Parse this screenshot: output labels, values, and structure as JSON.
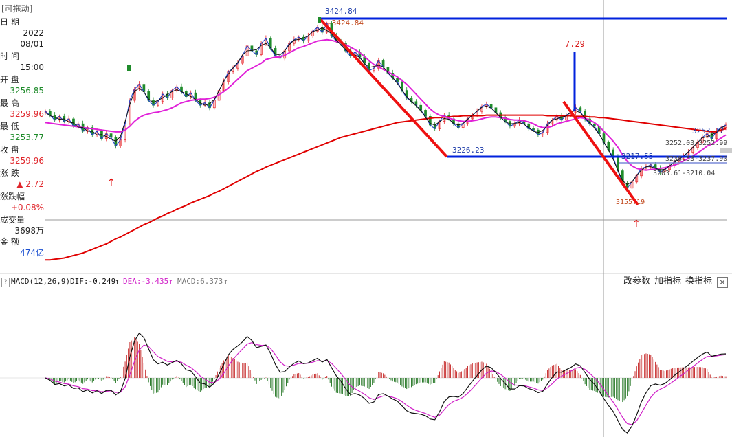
{
  "info_panel": {
    "drag_label": "[可拖动]",
    "date_label": "日  期",
    "date_year": "2022",
    "date_md": "08/01",
    "time_label": "时  间",
    "time_value": "15:00",
    "open_label": "开  盘",
    "open_value": "3256.85",
    "high_label": "最  高",
    "high_value": "3259.96",
    "low_label": "最  低",
    "low_value": "3253.77",
    "close_label": "收  盘",
    "close_value": "3259.96",
    "change_label": "涨  跌",
    "change_value": "▲ 2.72",
    "pct_label": "涨跌幅",
    "pct_value": "+0.08%",
    "vol_label": "成交量",
    "vol_value": "3698万",
    "amt_label": "金  额",
    "amt_value": "474亿"
  },
  "macd_bar": {
    "help": "?",
    "title": "MACD(12,26,9)",
    "dif": "DIF:-0.249",
    "dif_arrow": "↑",
    "dea": "DEA:-3.435",
    "dea_arrow": "↑",
    "macd": "MACD:6.373",
    "macd_arrow": "↑",
    "btn_params": "改参数",
    "btn_add": "加指标",
    "btn_switch": "换指标",
    "btn_close": "×"
  },
  "annotations": {
    "high_top": "3424.84",
    "high_side": "3424.84",
    "mid_low": "3226.23",
    "line_value": "7.29",
    "level_3217": "3217.55",
    "low_3155": "3155.19",
    "last_3253": "3253.17",
    "range_a": "3252.03-3252.99",
    "range_b": "3238.53-3237.90",
    "range_c": "3203.61-3210.04"
  },
  "colors": {
    "up": "#e8262b",
    "down": "#1f8b2b",
    "ma_short": "#000000",
    "ma_mid": "#e020d8",
    "ma_long": "#e00000",
    "blue_line": "#0022dd",
    "red_trend": "#ee1111",
    "dif": "#000000",
    "dea": "#d020c8",
    "macd_up": "#c83030",
    "macd_down": "#2a7a2a",
    "label_blue": "#1b3aa8"
  },
  "chart_data": {
    "type": "line",
    "title": "",
    "yrange_price": [
      3040,
      3440
    ],
    "series": [
      {
        "values": [
          3282,
          3276,
          3268,
          3274,
          3266,
          3270,
          3258,
          3262,
          3250,
          3256,
          3244,
          3250,
          3238,
          3246,
          3240,
          3226,
          3236,
          3262,
          3300,
          3318,
          3326,
          3314,
          3300,
          3292,
          3298,
          3310,
          3304,
          3316,
          3322,
          3314,
          3306,
          3312,
          3300,
          3292,
          3296,
          3288,
          3300,
          3316,
          3330,
          3346,
          3352,
          3360,
          3372,
          3388,
          3380,
          3374,
          3392,
          3400,
          3384,
          3372,
          3368,
          3380,
          3392,
          3398,
          3402,
          3396,
          3404,
          3412,
          3418,
          3410,
          3424,
          3404,
          3396,
          3392,
          3380,
          3372,
          3378,
          3370,
          3360,
          3348,
          3352,
          3364,
          3354,
          3344,
          3336,
          3330,
          3316,
          3304,
          3298,
          3292,
          3284,
          3274,
          3260,
          3254,
          3266,
          3276,
          3270,
          3262,
          3256,
          3262,
          3270,
          3276,
          3282,
          3290,
          3294,
          3288,
          3280,
          3272,
          3266,
          3258,
          3262,
          3268,
          3262,
          3254,
          3252,
          3244,
          3248,
          3262,
          3268,
          3274,
          3268,
          3276,
          3280,
          3288,
          3282,
          3270,
          3262,
          3258,
          3246,
          3232,
          3220,
          3208,
          3186,
          3166,
          3158,
          3168,
          3178,
          3190,
          3192,
          3196,
          3190,
          3184,
          3188,
          3194,
          3200,
          3204,
          3210,
          3216,
          3224,
          3232,
          3240,
          3246,
          3238,
          3250,
          3256,
          3260
        ]
      },
      {
        "values": [
          3264,
          3263,
          3262,
          3261,
          3260,
          3259,
          3258,
          3257,
          3256,
          3255,
          3254,
          3253,
          3252,
          3251,
          3250,
          3249,
          3249,
          3252,
          3258,
          3266,
          3272,
          3276,
          3278,
          3280,
          3281,
          3283,
          3285,
          3288,
          3292,
          3296,
          3298,
          3300,
          3301,
          3302,
          3302,
          3303,
          3305,
          3309,
          3314,
          3320,
          3327,
          3334,
          3341,
          3348,
          3352,
          3356,
          3360,
          3366,
          3368,
          3370,
          3370,
          3373,
          3377,
          3381,
          3385,
          3387,
          3390,
          3393,
          3396,
          3397,
          3398,
          3397,
          3395,
          3393,
          3390,
          3386,
          3382,
          3377,
          3371,
          3364,
          3358,
          3354,
          3350,
          3346,
          3342,
          3338,
          3332,
          3326,
          3318,
          3310,
          3302,
          3294,
          3286,
          3280,
          3276,
          3274,
          3271,
          3269,
          3267,
          3266,
          3266,
          3267,
          3268,
          3270,
          3272,
          3273,
          3273,
          3272,
          3271,
          3269,
          3268,
          3268,
          3267,
          3265,
          3262,
          3258,
          3256,
          3256,
          3258,
          3262,
          3264,
          3266,
          3268,
          3270,
          3272,
          3271,
          3268,
          3264,
          3258,
          3250,
          3242,
          3234,
          3224,
          3212,
          3201,
          3194,
          3190,
          3188,
          3187,
          3188,
          3189,
          3190,
          3191,
          3193,
          3195,
          3198,
          3202,
          3206,
          3210,
          3215,
          3220,
          3226,
          3229,
          3234,
          3239,
          3244
        ]
      },
      {
        "values": [
          3042,
          3042,
          3043,
          3044,
          3045,
          3047,
          3049,
          3051,
          3053,
          3056,
          3059,
          3062,
          3065,
          3068,
          3072,
          3076,
          3079,
          3083,
          3087,
          3091,
          3095,
          3099,
          3102,
          3106,
          3110,
          3113,
          3117,
          3120,
          3124,
          3127,
          3130,
          3134,
          3137,
          3140,
          3143,
          3146,
          3150,
          3153,
          3157,
          3161,
          3165,
          3169,
          3173,
          3177,
          3181,
          3185,
          3188,
          3192,
          3195,
          3198,
          3201,
          3204,
          3207,
          3210,
          3213,
          3216,
          3219,
          3222,
          3225,
          3228,
          3231,
          3234,
          3237,
          3240,
          3242,
          3244,
          3246,
          3248,
          3250,
          3252,
          3254,
          3256,
          3258,
          3260,
          3262,
          3264,
          3265,
          3266,
          3267,
          3268,
          3269,
          3270,
          3271,
          3272,
          3272,
          3273,
          3273,
          3274,
          3274,
          3275,
          3275,
          3275,
          3275,
          3275,
          3276,
          3276,
          3276,
          3276,
          3276,
          3276,
          3276,
          3276,
          3276,
          3276,
          3276,
          3276,
          3276,
          3275,
          3275,
          3275,
          3275,
          3275,
          3275,
          3274,
          3274,
          3274,
          3273,
          3273,
          3272,
          3272,
          3271,
          3270,
          3269,
          3268,
          3267,
          3266,
          3265,
          3264,
          3263,
          3262,
          3261,
          3260,
          3259,
          3258,
          3257,
          3256,
          3255,
          3254,
          3253,
          3252,
          3251,
          3250,
          3249,
          3249,
          3252,
          3254
        ]
      }
    ]
  }
}
